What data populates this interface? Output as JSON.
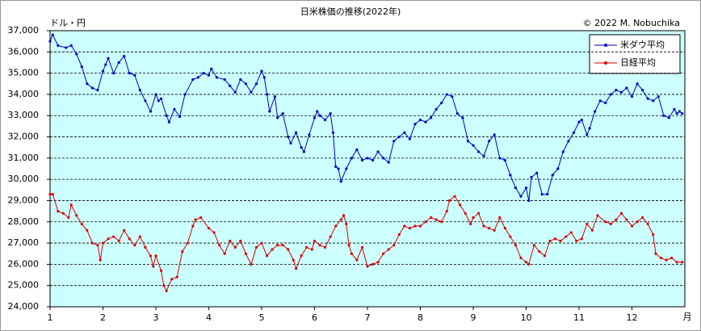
{
  "chart_data": {
    "type": "line",
    "title": "日米株価の推移(2022年)",
    "ylabel": "ドル・円",
    "xlabel": "月",
    "annotation": "© 2022 M. Nobuchika",
    "xlim": [
      1,
      13
    ],
    "xticks": [
      1,
      2,
      3,
      4,
      5,
      6,
      7,
      8,
      9,
      10,
      11,
      12
    ],
    "ylim": [
      24000,
      37000
    ],
    "yticks": [
      {
        "value": 24000,
        "label": "24,000"
      },
      {
        "value": 25000,
        "label": "25,000"
      },
      {
        "value": 26000,
        "label": "26,000"
      },
      {
        "value": 27000,
        "label": "27,000"
      },
      {
        "value": 28000,
        "label": "28,000"
      },
      {
        "value": 29000,
        "label": "29,000"
      },
      {
        "value": 30000,
        "label": "30,000"
      },
      {
        "value": 31000,
        "label": "31,000"
      },
      {
        "value": 32000,
        "label": "32,000"
      },
      {
        "value": 33000,
        "label": "33,000"
      },
      {
        "value": 34000,
        "label": "34,000"
      },
      {
        "value": 35000,
        "label": "35,000"
      },
      {
        "value": 36000,
        "label": "36,000"
      },
      {
        "value": 37000,
        "label": "37,000"
      }
    ],
    "grid": true,
    "legend": "upper right",
    "series": [
      {
        "name": "米ダウ平均",
        "color": "#0000cc",
        "x": [
          1.0,
          1.05,
          1.15,
          1.3,
          1.4,
          1.5,
          1.6,
          1.7,
          1.8,
          1.9,
          2.0,
          2.05,
          2.1,
          2.2,
          2.3,
          2.4,
          2.5,
          2.6,
          2.7,
          2.8,
          2.9,
          3.0,
          3.05,
          3.1,
          3.2,
          3.25,
          3.35,
          3.45,
          3.55,
          3.7,
          3.8,
          3.9,
          4.0,
          4.05,
          4.15,
          4.3,
          4.4,
          4.5,
          4.6,
          4.7,
          4.8,
          4.9,
          5.0,
          5.05,
          5.1,
          5.15,
          5.25,
          5.3,
          5.4,
          5.5,
          5.55,
          5.65,
          5.75,
          5.8,
          5.9,
          6.0,
          6.05,
          6.1,
          6.2,
          6.3,
          6.35,
          6.4,
          6.45,
          6.5,
          6.6,
          6.7,
          6.8,
          6.9,
          7.0,
          7.1,
          7.2,
          7.3,
          7.4,
          7.5,
          7.6,
          7.7,
          7.8,
          7.9,
          8.0,
          8.1,
          8.2,
          8.3,
          8.4,
          8.5,
          8.6,
          8.7,
          8.8,
          8.9,
          9.0,
          9.1,
          9.2,
          9.3,
          9.4,
          9.5,
          9.6,
          9.7,
          9.8,
          9.9,
          10.0,
          10.05,
          10.1,
          10.2,
          10.3,
          10.4,
          10.5,
          10.6,
          10.7,
          10.8,
          10.9,
          11.0,
          11.05,
          11.15,
          11.2,
          11.3,
          11.4,
          11.5,
          11.6,
          11.7,
          11.8,
          11.9,
          12.0,
          12.1,
          12.2,
          12.3,
          12.4,
          12.5,
          12.6,
          12.7,
          12.8,
          12.85,
          12.9,
          12.95
        ],
        "values": [
          36500,
          36800,
          36300,
          36200,
          36300,
          35900,
          35300,
          34500,
          34300,
          34200,
          35100,
          35400,
          35700,
          35000,
          35500,
          35800,
          35000,
          34900,
          34200,
          33700,
          33200,
          34000,
          33700,
          33800,
          33000,
          32700,
          33300,
          32950,
          34000,
          34700,
          34800,
          35000,
          34900,
          35200,
          34800,
          34700,
          34400,
          34100,
          34700,
          34500,
          34100,
          34500,
          35100,
          34800,
          34000,
          33200,
          33900,
          32900,
          33100,
          32000,
          31700,
          32200,
          31500,
          31300,
          32100,
          32900,
          33200,
          33000,
          32800,
          33100,
          32200,
          30600,
          30500,
          29900,
          30500,
          31000,
          31400,
          30900,
          31000,
          30900,
          31300,
          31000,
          30800,
          31800,
          32000,
          32200,
          31900,
          32600,
          32800,
          32700,
          32900,
          33300,
          33600,
          34000,
          33900,
          33100,
          32900,
          31800,
          31600,
          31300,
          31100,
          31800,
          32100,
          31000,
          30900,
          30200,
          29600,
          29200,
          29600,
          29000,
          30100,
          30300,
          29300,
          29300,
          30200,
          30500,
          31300,
          31800,
          32200,
          32700,
          32800,
          32100,
          32400,
          33200,
          33700,
          33600,
          34000,
          34200,
          34100,
          34300,
          33900,
          34500,
          34200,
          33800,
          33700,
          33900,
          33000,
          32900,
          33300,
          33100,
          33200,
          33100
        ]
      },
      {
        "name": "日経平均",
        "color": "#dd0000",
        "x": [
          1.0,
          1.05,
          1.15,
          1.25,
          1.35,
          1.4,
          1.5,
          1.6,
          1.7,
          1.8,
          1.9,
          1.95,
          2.0,
          2.1,
          2.2,
          2.3,
          2.4,
          2.5,
          2.6,
          2.7,
          2.8,
          2.9,
          2.95,
          3.0,
          3.1,
          3.15,
          3.2,
          3.3,
          3.4,
          3.5,
          3.6,
          3.7,
          3.75,
          3.85,
          4.0,
          4.1,
          4.2,
          4.3,
          4.4,
          4.5,
          4.6,
          4.7,
          4.8,
          4.9,
          5.0,
          5.1,
          5.2,
          5.3,
          5.4,
          5.5,
          5.6,
          5.65,
          5.75,
          5.85,
          5.95,
          6.0,
          6.1,
          6.2,
          6.3,
          6.4,
          6.5,
          6.55,
          6.6,
          6.65,
          6.7,
          6.8,
          6.9,
          7.0,
          7.1,
          7.2,
          7.3,
          7.4,
          7.5,
          7.6,
          7.7,
          7.8,
          7.9,
          8.0,
          8.1,
          8.2,
          8.3,
          8.4,
          8.5,
          8.55,
          8.65,
          8.75,
          8.85,
          8.95,
          9.0,
          9.1,
          9.2,
          9.3,
          9.4,
          9.5,
          9.6,
          9.7,
          9.8,
          9.9,
          10.0,
          10.05,
          10.15,
          10.25,
          10.35,
          10.45,
          10.55,
          10.65,
          10.75,
          10.85,
          10.95,
          11.05,
          11.15,
          11.25,
          11.35,
          11.5,
          11.6,
          11.7,
          11.8,
          11.9,
          12.0,
          12.1,
          12.2,
          12.3,
          12.4,
          12.45,
          12.55,
          12.65,
          12.75,
          12.85,
          12.95
        ],
        "values": [
          29300,
          29300,
          28500,
          28400,
          28200,
          28800,
          28300,
          27900,
          27600,
          27000,
          26900,
          26200,
          27000,
          27200,
          27300,
          27100,
          27600,
          27200,
          26900,
          27300,
          26800,
          26400,
          25900,
          26400,
          25700,
          25000,
          24750,
          25300,
          25400,
          26600,
          27000,
          27800,
          28100,
          28200,
          27700,
          27500,
          26900,
          26500,
          27100,
          26800,
          27100,
          26500,
          26000,
          26800,
          27000,
          26400,
          26700,
          26900,
          26900,
          26700,
          26200,
          25800,
          26400,
          26800,
          26700,
          27100,
          26900,
          26800,
          27300,
          27800,
          28100,
          28300,
          27900,
          26900,
          26500,
          26200,
          26800,
          25900,
          26000,
          26100,
          26500,
          26700,
          26900,
          27400,
          27800,
          27700,
          27800,
          27800,
          28000,
          28200,
          28100,
          28000,
          28500,
          29000,
          29200,
          28800,
          28400,
          27900,
          28200,
          28400,
          27800,
          27700,
          27600,
          28200,
          27700,
          27300,
          26900,
          26300,
          26100,
          26000,
          26900,
          26600,
          26400,
          27100,
          27200,
          27100,
          27300,
          27500,
          27100,
          27200,
          27900,
          27600,
          28300,
          28000,
          27900,
          28100,
          28400,
          28100,
          27800,
          28000,
          28200,
          27900,
          27400,
          26500,
          26300,
          26200,
          26300,
          26100,
          26100
        ]
      }
    ]
  }
}
